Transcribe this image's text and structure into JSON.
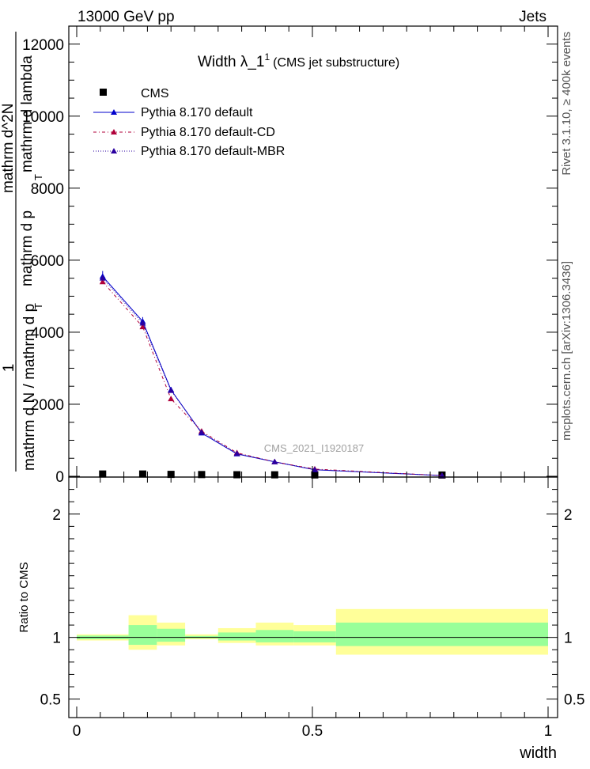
{
  "header": {
    "left": "13000 GeV pp",
    "right": "Jets",
    "side_top": "Rivet 3.1.10, ≥ 400k events",
    "side_bottom": "mcplots.cern.ch [arXiv:1306.3436]"
  },
  "chart_data": [
    {
      "type": "line",
      "title": "Width λ_1",
      "title_sup": "1",
      "subtitle": "(CMS jet substructure)",
      "watermark": "CMS_2021_I1920187",
      "ylabel_parts": [
        "1",
        "mathrm d N / mathrm d p",
        "T",
        "mathrm d^2N",
        "mathrm d p",
        "T",
        "mathrm d lambda"
      ],
      "xlim": [
        0,
        1
      ],
      "ylim": [
        0,
        12500
      ],
      "yticks": [
        0,
        2000,
        4000,
        6000,
        8000,
        10000,
        12000
      ],
      "ytick_labels": [
        "0",
        "2000",
        "4000",
        "6000",
        "8000",
        "10000",
        "12000"
      ],
      "legend_position": "top-left",
      "x_bins": [
        [
          0,
          0.11
        ],
        [
          0.11,
          0.17
        ],
        [
          0.17,
          0.23
        ],
        [
          0.23,
          0.3
        ],
        [
          0.3,
          0.38
        ],
        [
          0.38,
          0.46
        ],
        [
          0.46,
          0.55
        ],
        [
          0.55,
          1.0
        ]
      ],
      "x": [
        0.055,
        0.14,
        0.2,
        0.265,
        0.34,
        0.42,
        0.505,
        0.775
      ],
      "series": [
        {
          "name": "CMS",
          "marker": "square",
          "color": "#000000",
          "values": [
            30,
            30,
            20,
            15,
            10,
            8,
            5,
            2
          ]
        },
        {
          "name": "Pythia 8.170 default",
          "marker": "triangle",
          "color": "#0000cc",
          "dash": "solid",
          "values": [
            5550,
            4300,
            2400,
            1200,
            620,
            400,
            180,
            20
          ],
          "errors": [
            150,
            120,
            80,
            50,
            40,
            30,
            20,
            5
          ]
        },
        {
          "name": "Pythia 8.170 default-CD",
          "marker": "triangle",
          "color": "#b0003a",
          "dash": "4,3,1,3",
          "values": [
            5400,
            4150,
            2150,
            1250,
            650,
            400,
            200,
            20
          ]
        },
        {
          "name": "Pythia 8.170 default-MBR",
          "marker": "triangle",
          "color": "#2a00a0",
          "dash": "1,2",
          "values": [
            5500,
            4250,
            2380,
            1220,
            630,
            400,
            185,
            20
          ]
        }
      ]
    },
    {
      "type": "area",
      "ylabel": "Ratio to CMS",
      "xlabel": "width",
      "xlim": [
        0,
        1
      ],
      "ylim": [
        0.35,
        2.3
      ],
      "yticks": [
        0.5,
        1,
        2
      ],
      "ytick_labels": [
        "0.5",
        "1",
        "2"
      ],
      "xticks": [
        0,
        0.5,
        1
      ],
      "xtick_labels": [
        "0",
        "0.5",
        "1"
      ],
      "bands": [
        {
          "name": "yellow band",
          "color": "#ffff99",
          "low": [
            0.975,
            0.9,
            0.935,
            0.985,
            0.955,
            0.935,
            0.935,
            0.86
          ],
          "high": [
            1.025,
            1.18,
            1.12,
            1.025,
            1.075,
            1.12,
            1.1,
            1.23
          ]
        },
        {
          "name": "green band",
          "color": "#99ff99",
          "low": [
            0.985,
            0.94,
            0.965,
            0.993,
            0.975,
            0.96,
            0.96,
            0.93
          ],
          "high": [
            1.015,
            1.1,
            1.07,
            1.012,
            1.04,
            1.06,
            1.05,
            1.12
          ]
        }
      ],
      "reference_line": 1
    }
  ]
}
